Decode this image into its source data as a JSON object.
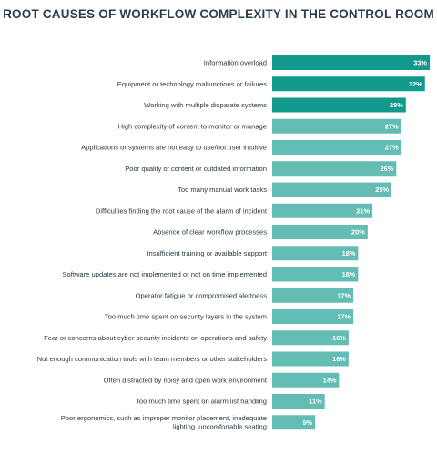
{
  "chart_data": {
    "type": "bar",
    "orientation": "horizontal",
    "title": "ROOT CAUSES OF WORKFLOW COMPLEXITY IN THE CONTROL ROOM",
    "xlabel": "",
    "ylabel": "",
    "value_suffix": "%",
    "xlim": [
      0,
      33
    ],
    "grid": false,
    "colors": {
      "highlight": "#11998c",
      "normal": "#63bdb4"
    },
    "highlight_count": 3,
    "categories": [
      [
        "Information overload"
      ],
      [
        "Equipment or technology malfunctions or failures"
      ],
      [
        "Working with multiple disparate systems"
      ],
      [
        "High complexity of content to monitor or manage"
      ],
      [
        "Applications or systems are not easy to use/not user intuitive"
      ],
      [
        "Poor quality of content or outdated information"
      ],
      [
        "Too many manual work tasks"
      ],
      [
        "Difficulties finding the root cause of the alarm of incident"
      ],
      [
        "Absence of clear workflow processes"
      ],
      [
        "Insufficient training or available support"
      ],
      [
        "Software updates are not implemented or not on time implemented"
      ],
      [
        "Operator fatigue or compromised alertness"
      ],
      [
        "Too much time spent on security layers in the system"
      ],
      [
        "Fear or concerns about cyber security incidents on operations and safety"
      ],
      [
        "Not enough communication tools with team members or other stakeholders"
      ],
      [
        "Often distracted by noisy and open work environment"
      ],
      [
        "Too much time spent on alarm list handling"
      ],
      [
        "Poor ergonomics, such as improper monitor placement, inadequate",
        "lighting, uncomfortable seating"
      ]
    ],
    "values": [
      33,
      32,
      28,
      27,
      27,
      26,
      25,
      21,
      20,
      18,
      18,
      17,
      17,
      16,
      16,
      14,
      11,
      9
    ]
  }
}
